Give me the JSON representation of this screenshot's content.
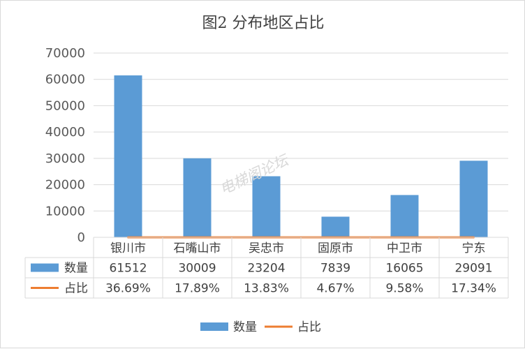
{
  "chart_data": {
    "type": "bar",
    "title": "图2  分布地区占比",
    "categories": [
      "银川市",
      "石嘴山市",
      "吴忠市",
      "固原市",
      "中卫市",
      "宁东"
    ],
    "series": [
      {
        "name": "数量",
        "type": "bar",
        "color": "#5b9bd5",
        "values": [
          61512,
          30009,
          23204,
          7839,
          16065,
          29091
        ],
        "labels": [
          "61512",
          "30009",
          "23204",
          "7839",
          "16065",
          "29091"
        ]
      },
      {
        "name": "占比",
        "type": "line",
        "color": "#ed7d31",
        "values": [
          0.3669,
          0.1789,
          0.1383,
          0.0467,
          0.0958,
          0.1734
        ],
        "labels": [
          "36.69%",
          "17.89%",
          "13.83%",
          "4.67%",
          "9.58%",
          "17.34%"
        ]
      }
    ],
    "ylim": [
      0,
      70000
    ],
    "yticks": [
      "0",
      "10000",
      "20000",
      "30000",
      "40000",
      "50000",
      "60000",
      "70000"
    ],
    "grid": true,
    "data_table": true,
    "legend_position": "bottom",
    "watermark": "电梯阁论坛"
  }
}
